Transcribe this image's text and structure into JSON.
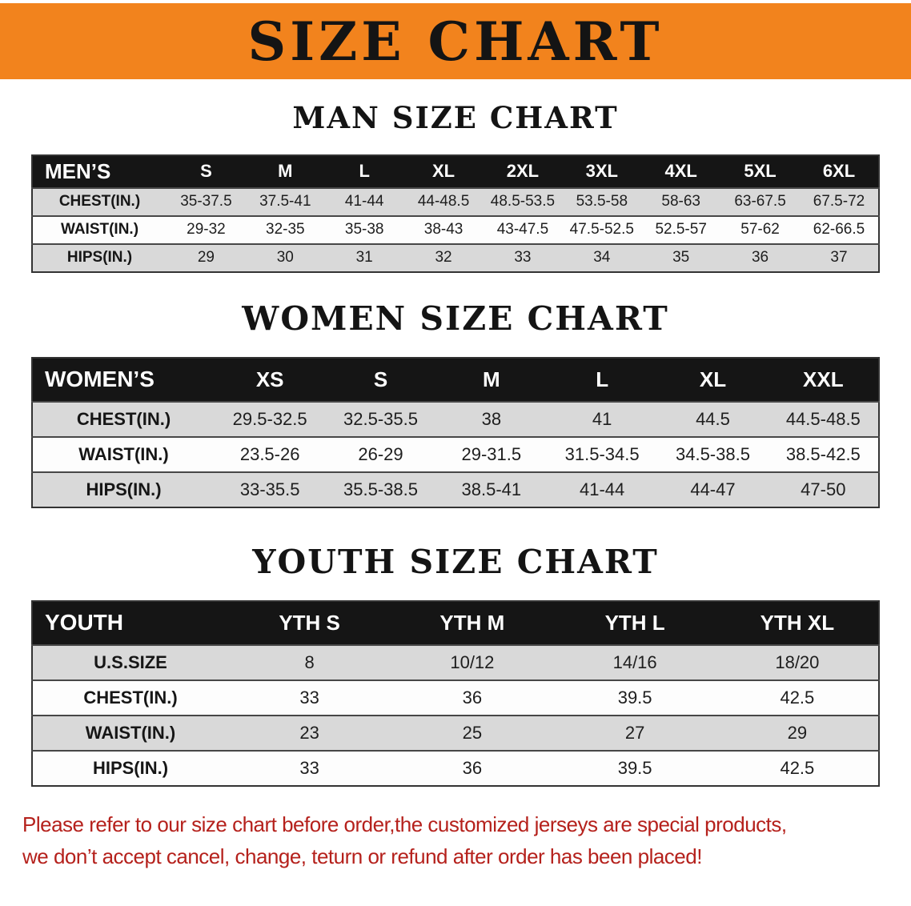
{
  "banner": {
    "title": "SIZE CHART"
  },
  "sections": [
    {
      "heading": "MAN SIZE CHART",
      "table": {
        "header": [
          "MEN’S",
          "S",
          "M",
          "L",
          "XL",
          "2XL",
          "3XL",
          "4XL",
          "5XL",
          "6XL"
        ],
        "rows": [
          [
            "CHEST(IN.)",
            "35-37.5",
            "37.5-41",
            "41-44",
            "44-48.5",
            "48.5-53.5",
            "53.5-58",
            "58-63",
            "63-67.5",
            "67.5-72"
          ],
          [
            "WAIST(IN.)",
            "29-32",
            "32-35",
            "35-38",
            "38-43",
            "43-47.5",
            "47.5-52.5",
            "52.5-57",
            "57-62",
            "62-66.5"
          ],
          [
            "HIPS(IN.)",
            "29",
            "30",
            "31",
            "32",
            "33",
            "34",
            "35",
            "36",
            "37"
          ]
        ]
      }
    },
    {
      "heading": "WOMEN SIZE CHART",
      "table": {
        "header": [
          "WOMEN’S",
          "XS",
          "S",
          "M",
          "L",
          "XL",
          "XXL"
        ],
        "rows": [
          [
            "CHEST(IN.)",
            "29.5-32.5",
            "32.5-35.5",
            "38",
            "41",
            "44.5",
            "44.5-48.5"
          ],
          [
            "WAIST(IN.)",
            "23.5-26",
            "26-29",
            "29-31.5",
            "31.5-34.5",
            "34.5-38.5",
            "38.5-42.5"
          ],
          [
            "HIPS(IN.)",
            "33-35.5",
            "35.5-38.5",
            "38.5-41",
            "41-44",
            "44-47",
            "47-50"
          ]
        ]
      }
    },
    {
      "heading": "YOUTH SIZE CHART",
      "table": {
        "header": [
          "YOUTH",
          "YTH S",
          "YTH M",
          "YTH L",
          "YTH XL"
        ],
        "rows": [
          [
            "U.S.SIZE",
            "8",
            "10/12",
            "14/16",
            "18/20"
          ],
          [
            "CHEST(IN.)",
            "33",
            "36",
            "39.5",
            "42.5"
          ],
          [
            "WAIST(IN.)",
            "23",
            "25",
            "27",
            "29"
          ],
          [
            "HIPS(IN.)",
            "33",
            "36",
            "39.5",
            "42.5"
          ]
        ]
      }
    }
  ],
  "footer": {
    "line1": "Please refer to our size chart before order,the customized jerseys are special products,",
    "line2": "we don’t accept cancel, change, teturn or refund after order has been placed!"
  },
  "colors": {
    "banner-bg": "#F2831D",
    "table-header-bg": "#151515",
    "row-stripe": "#D9D9D9",
    "disclaimer-red": "#B5211C",
    "heading-text": "#141414"
  }
}
